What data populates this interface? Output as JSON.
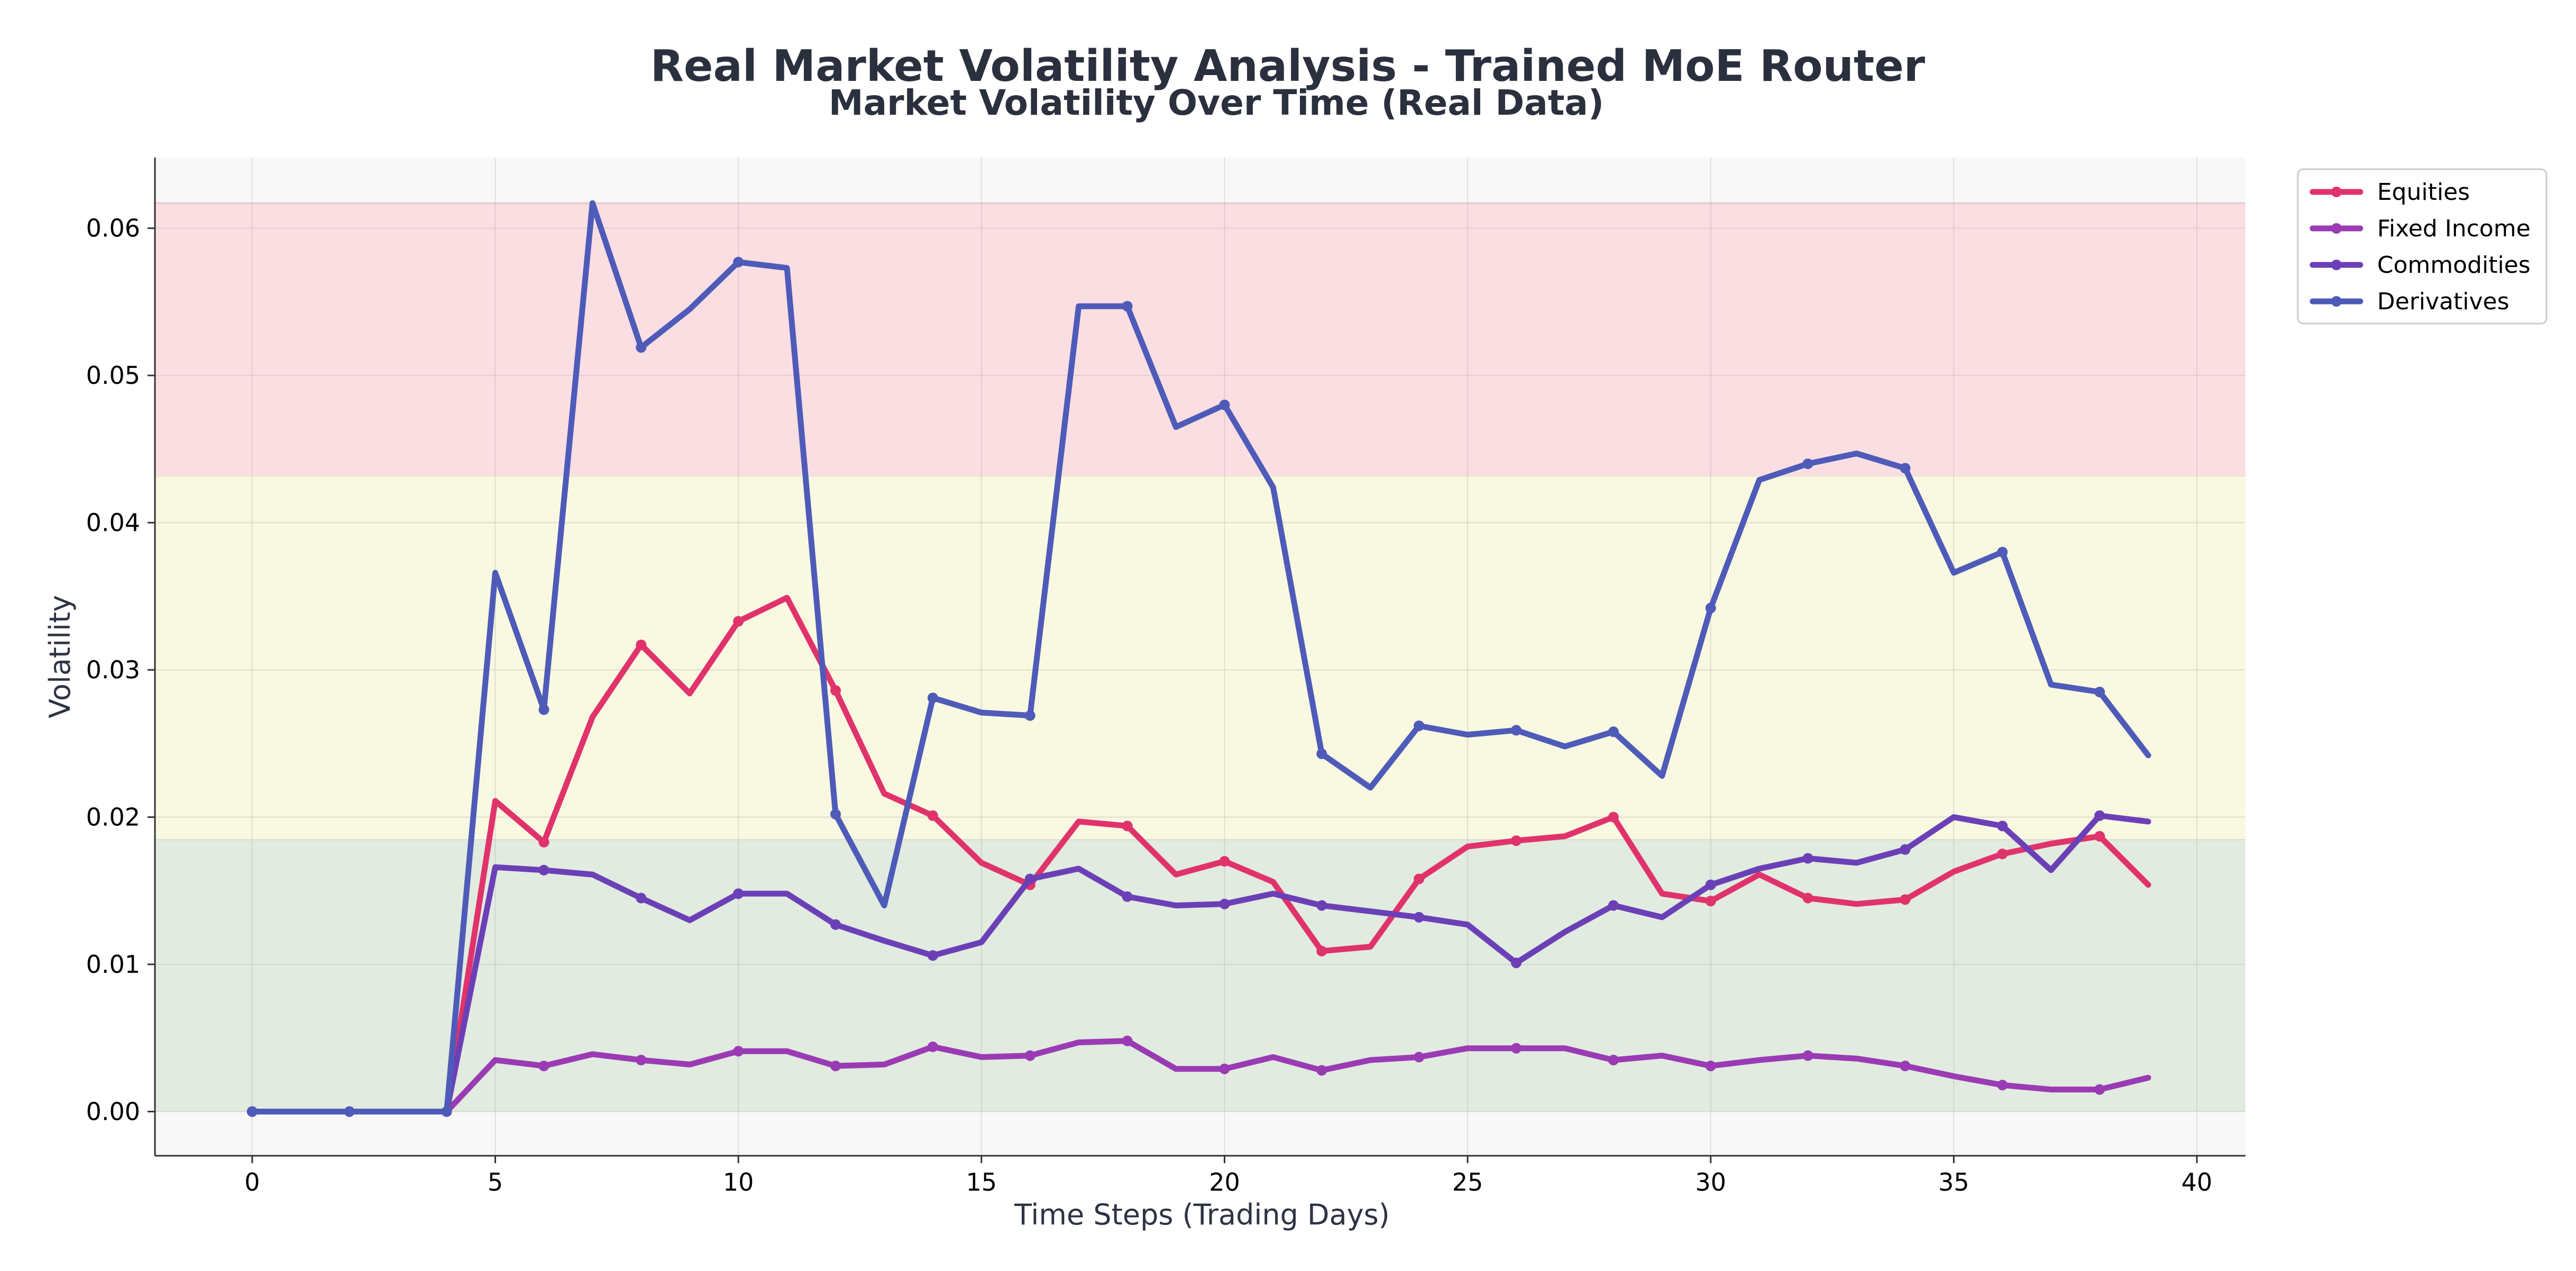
{
  "figure": {
    "title": "Real Market Volatility Analysis - Trained MoE Router"
  },
  "chart_data": {
    "type": "line",
    "title": "Market Volatility Over Time (Real Data)",
    "xlabel": "Time Steps (Trading Days)",
    "ylabel": "Volatility",
    "xlim": [
      -2,
      41
    ],
    "ylim": [
      -0.003,
      0.0648
    ],
    "xticks": [
      0,
      5,
      10,
      15,
      20,
      25,
      30,
      35,
      40
    ],
    "yticks": [
      0.0,
      0.01,
      0.02,
      0.03,
      0.04,
      0.05,
      0.06
    ],
    "ytick_labels": [
      "0.00",
      "0.01",
      "0.02",
      "0.03",
      "0.04",
      "0.05",
      "0.06"
    ],
    "grid": true,
    "legend_position": "outside-top-right",
    "bands": [
      {
        "from": 0.0,
        "to": 0.0185,
        "color": "#e1ebe0"
      },
      {
        "from": 0.0185,
        "to": 0.0432,
        "color": "#f9f8e1"
      },
      {
        "from": 0.0432,
        "to": 0.0617,
        "color": "#fadee2"
      }
    ],
    "x": [
      0,
      1,
      2,
      3,
      4,
      5,
      6,
      7,
      8,
      9,
      10,
      11,
      12,
      13,
      14,
      15,
      16,
      17,
      18,
      19,
      20,
      21,
      22,
      23,
      24,
      25,
      26,
      27,
      28,
      29,
      30,
      31,
      32,
      33,
      34,
      35,
      36,
      37,
      38,
      39
    ],
    "series": [
      {
        "name": "Equities",
        "color": "#e0336c",
        "values": [
          0,
          0,
          0,
          0,
          0,
          0.0211,
          0.0183,
          0.0268,
          0.0317,
          0.0284,
          0.0333,
          0.0349,
          0.0286,
          0.0216,
          0.0201,
          0.0169,
          0.0154,
          0.0197,
          0.0194,
          0.0161,
          0.017,
          0.0156,
          0.0109,
          0.0112,
          0.0158,
          0.018,
          0.0184,
          0.0187,
          0.02,
          0.0148,
          0.0143,
          0.0161,
          0.0145,
          0.0141,
          0.0144,
          0.0163,
          0.0175,
          0.0182,
          0.0187,
          0.0154
        ]
      },
      {
        "name": "Fixed Income",
        "color": "#9a3bb4",
        "values": [
          0,
          0,
          0,
          0,
          0,
          0.0035,
          0.0031,
          0.0039,
          0.0035,
          0.0032,
          0.0041,
          0.0041,
          0.0031,
          0.0032,
          0.0044,
          0.0037,
          0.0038,
          0.0047,
          0.0048,
          0.0029,
          0.0029,
          0.0037,
          0.0028,
          0.0035,
          0.0037,
          0.0043,
          0.0043,
          0.0043,
          0.0035,
          0.0038,
          0.0031,
          0.0035,
          0.0038,
          0.0036,
          0.0031,
          0.0024,
          0.0018,
          0.0015,
          0.0015,
          0.0023
        ]
      },
      {
        "name": "Commodities",
        "color": "#6b40b6",
        "values": [
          0,
          0,
          0,
          0,
          0,
          0.0166,
          0.0164,
          0.0161,
          0.0145,
          0.013,
          0.0148,
          0.0148,
          0.0127,
          0.0116,
          0.0106,
          0.0115,
          0.0158,
          0.0165,
          0.0146,
          0.014,
          0.0141,
          0.0148,
          0.014,
          0.0136,
          0.0132,
          0.0127,
          0.0101,
          0.0122,
          0.014,
          0.0132,
          0.0154,
          0.0165,
          0.0172,
          0.0169,
          0.0178,
          0.02,
          0.0194,
          0.0164,
          0.0201,
          0.0197
        ]
      },
      {
        "name": "Derivatives",
        "color": "#4e5bb8",
        "values": [
          0,
          0,
          0,
          0,
          0,
          0.0366,
          0.0273,
          0.0617,
          0.0519,
          0.0545,
          0.0577,
          0.0573,
          0.0202,
          0.014,
          0.0281,
          0.0271,
          0.0269,
          0.0547,
          0.0547,
          0.0465,
          0.048,
          0.0424,
          0.0243,
          0.022,
          0.0262,
          0.0256,
          0.0259,
          0.0248,
          0.0258,
          0.0228,
          0.0342,
          0.0429,
          0.044,
          0.0447,
          0.0437,
          0.0366,
          0.038,
          0.029,
          0.0285,
          0.0242
        ]
      }
    ]
  }
}
